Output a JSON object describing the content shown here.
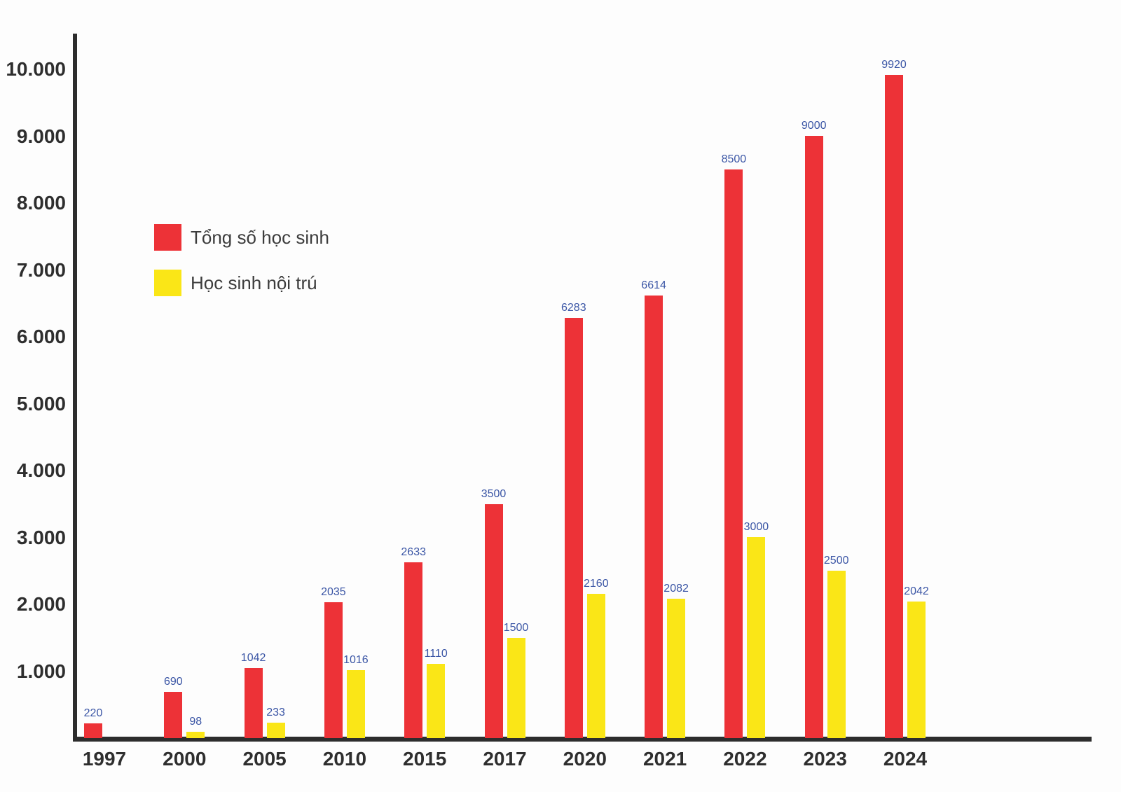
{
  "chart_data": {
    "type": "bar",
    "categories": [
      "1997",
      "2000",
      "2005",
      "2010",
      "2015",
      "2017",
      "2020",
      "2021",
      "2022",
      "2023",
      "2024"
    ],
    "series": [
      {
        "name": "Tổng số học sinh",
        "color": "#ed3237",
        "values": [
          220,
          690,
          1042,
          2035,
          2633,
          3500,
          6283,
          6614,
          8500,
          9000,
          9920
        ]
      },
      {
        "name": "Học sinh nội trú",
        "color": "#fae617",
        "values": [
          null,
          98,
          233,
          1016,
          1110,
          1500,
          2160,
          2082,
          3000,
          2500,
          2042
        ]
      }
    ],
    "title": "",
    "xlabel": "",
    "ylabel": "",
    "ylim": [
      0,
      10000
    ],
    "y_ticks": [
      {
        "value": 10000,
        "label": "10.000"
      },
      {
        "value": 9000,
        "label": "9.000"
      },
      {
        "value": 8000,
        "label": "8.000"
      },
      {
        "value": 7000,
        "label": "7.000"
      },
      {
        "value": 6000,
        "label": "6.000"
      },
      {
        "value": 5000,
        "label": "5.000"
      },
      {
        "value": 4000,
        "label": "4.000"
      },
      {
        "value": 3000,
        "label": "3.000"
      },
      {
        "value": 2000,
        "label": "2.000"
      },
      {
        "value": 1000,
        "label": "1.000"
      }
    ],
    "grid": false,
    "legend_position": "upper-left-inside",
    "value_labels_shown": true,
    "value_label_color": "#3a55a5",
    "axis_color": "#2d2d2d"
  },
  "legend": {
    "items": [
      {
        "label": "Tổng số học sinh",
        "color": "#ed3237"
      },
      {
        "label": "Học sinh nội trú",
        "color": "#fae617"
      }
    ]
  }
}
